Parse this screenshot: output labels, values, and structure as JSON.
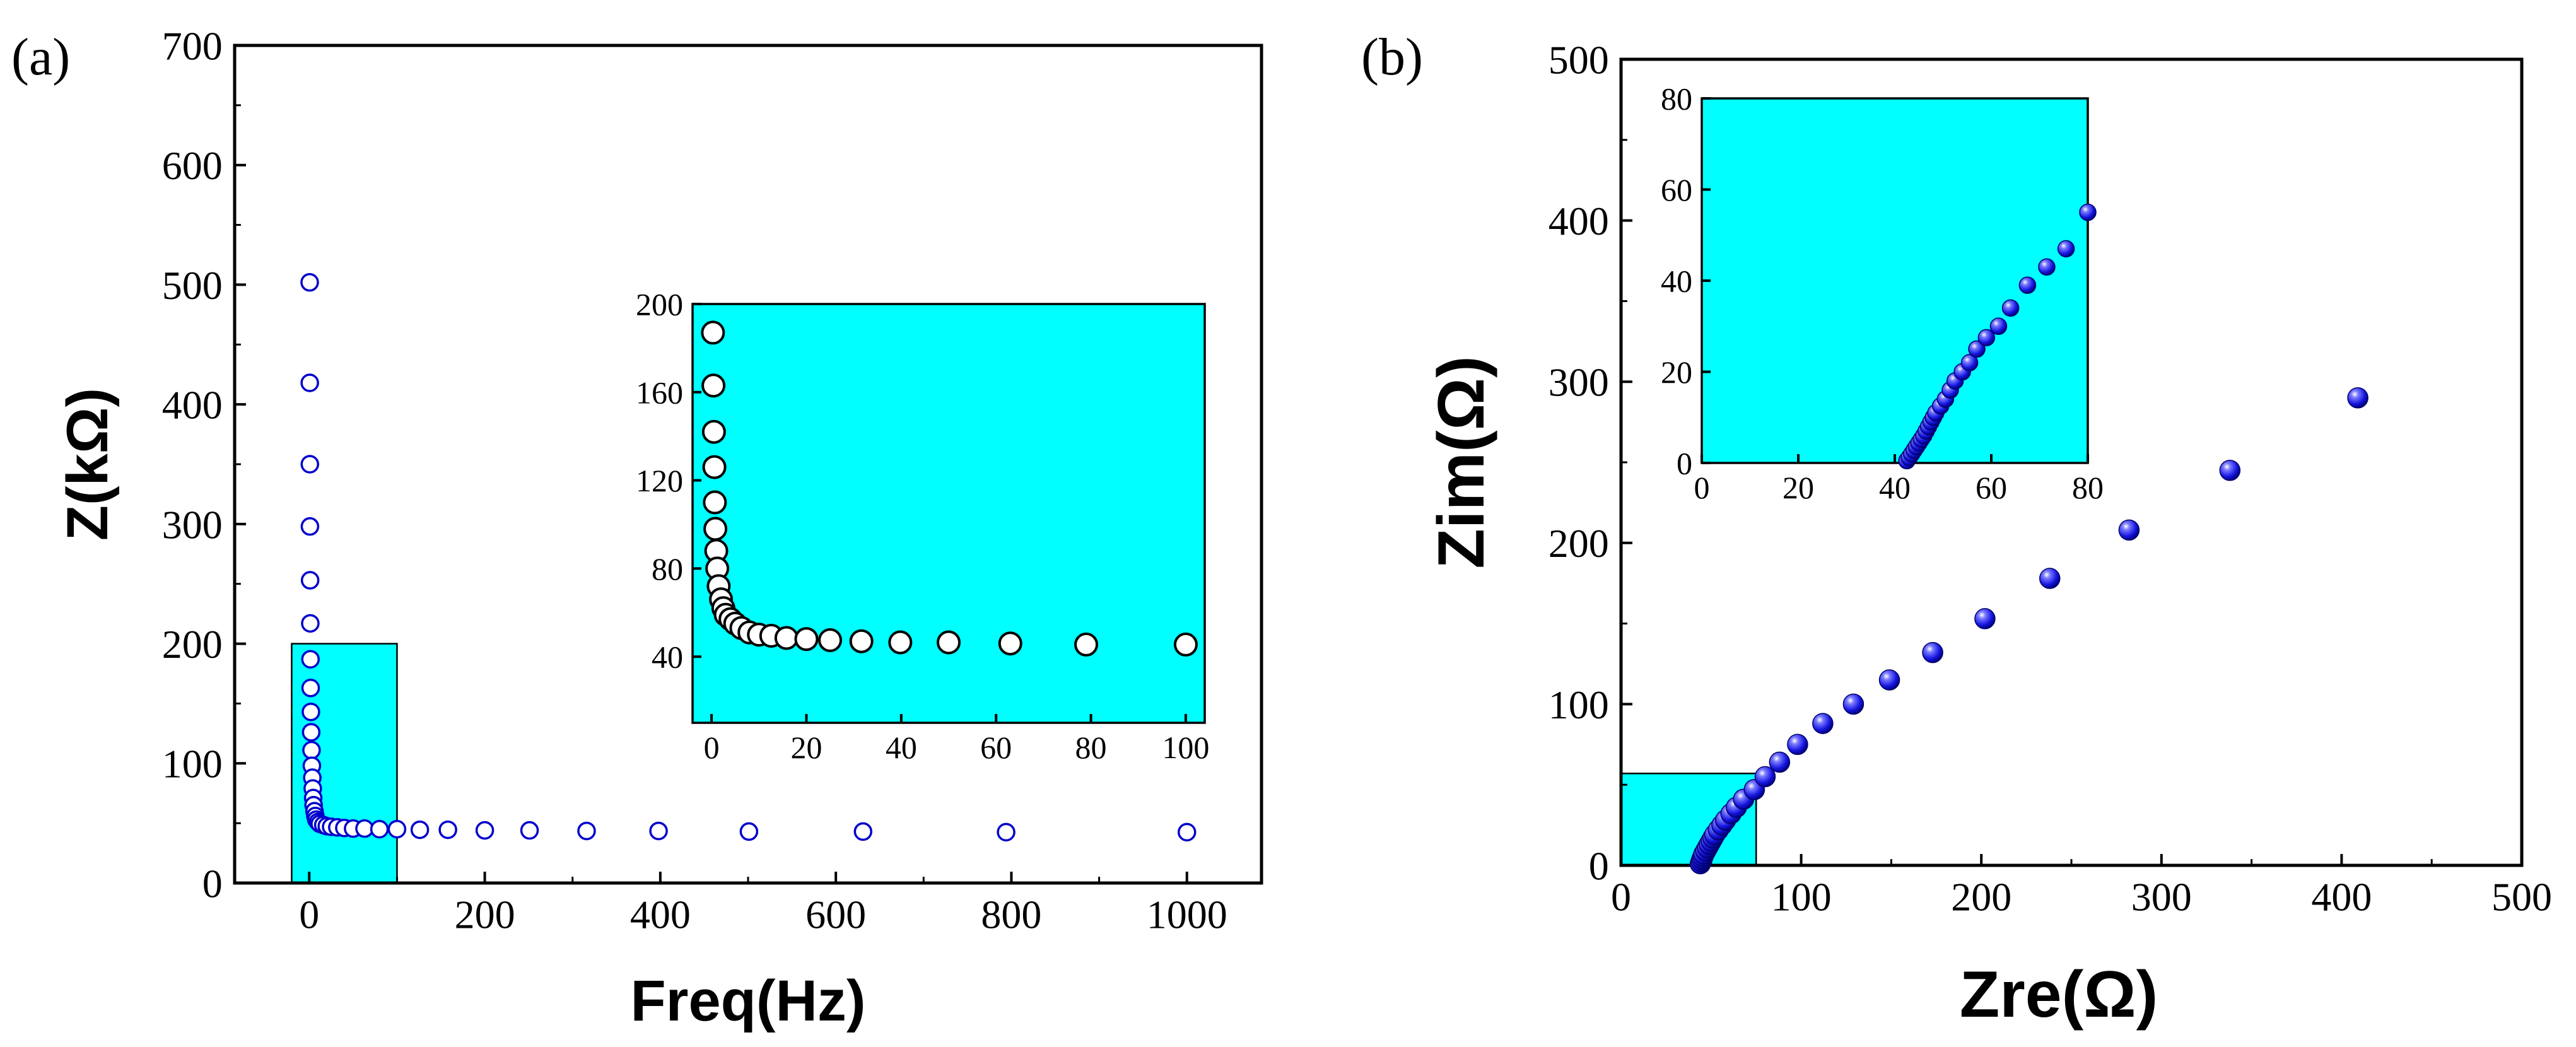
{
  "figure": {
    "label_a": "(a)",
    "label_b": "(b)"
  },
  "chart_data": [
    {
      "id": "a_main",
      "type": "scatter",
      "panel": "(a)",
      "xlabel": "Freq(Hz)",
      "ylabel": "Z(kΩ)",
      "xlim": [
        -85,
        1085
      ],
      "ylim": [
        0,
        700
      ],
      "xticks": [
        0,
        200,
        400,
        600,
        800,
        1000
      ],
      "yticks": [
        0,
        100,
        200,
        300,
        400,
        500,
        600,
        700
      ],
      "marker": "open-circle",
      "color": "#0000cc",
      "zoom_region": {
        "x": [
          -20,
          100
        ],
        "y": [
          0,
          200
        ],
        "fill": "#00ffff"
      },
      "x": [
        0.5,
        0.6,
        0.7,
        0.8,
        1,
        1.2,
        1.4,
        1.6,
        1.9,
        2.2,
        2.6,
        3,
        3.5,
        4,
        4.5,
        5,
        6,
        7,
        8,
        10,
        12,
        16,
        20,
        25,
        32,
        40,
        50,
        63,
        80,
        100,
        126,
        158,
        200,
        251,
        316,
        398,
        501,
        631,
        794,
        1000
      ],
      "y": [
        502,
        418,
        350,
        298,
        253,
        217,
        187,
        163,
        143,
        126,
        111,
        98,
        88,
        79,
        71,
        65,
        60,
        56,
        53,
        51,
        49.5,
        48.5,
        47.5,
        47,
        46.5,
        46,
        45.5,
        45.5,
        45,
        45,
        44.5,
        44.5,
        44,
        44,
        43.5,
        43.5,
        43,
        43,
        42.5,
        42.5
      ]
    },
    {
      "id": "a_inset",
      "type": "scatter",
      "panel": "(a) inset",
      "xlim": [
        -4,
        104
      ],
      "ylim": [
        10,
        200
      ],
      "xticks": [
        0,
        20,
        40,
        60,
        80,
        100
      ],
      "yticks": [
        40,
        80,
        120,
        160,
        200
      ],
      "marker": "open-circle",
      "background": "#00ffff",
      "x": [
        0.3,
        0.4,
        0.5,
        0.6,
        0.7,
        0.8,
        1,
        1.2,
        1.5,
        2,
        2.5,
        3,
        4,
        5,
        6.3,
        8,
        10,
        12.6,
        15.8,
        20,
        25,
        31.6,
        39.8,
        50,
        63,
        79,
        100
      ],
      "y": [
        187,
        163,
        142,
        126,
        110,
        98,
        88,
        80,
        72,
        66,
        62,
        59,
        57,
        55,
        53,
        51,
        50,
        49.5,
        48.5,
        48,
        47.5,
        47,
        46.5,
        46.5,
        46,
        45.5,
        45.5
      ]
    },
    {
      "id": "b_main",
      "type": "scatter",
      "panel": "(b)",
      "xlabel": "Zre(Ω)",
      "ylabel": "Zim(Ω)",
      "xlim": [
        0,
        500
      ],
      "ylim": [
        0,
        500
      ],
      "xticks": [
        0,
        100,
        200,
        300,
        400,
        500
      ],
      "yticks": [
        0,
        100,
        200,
        300,
        400,
        500
      ],
      "marker": "filled-sphere",
      "color": "#1111ee",
      "zoom_region": {
        "x": [
          0,
          75
        ],
        "y": [
          0,
          57
        ],
        "fill": "#00ffff"
      },
      "x": [
        44,
        44.5,
        45,
        45.5,
        46,
        47,
        48,
        49,
        50,
        51,
        52,
        54,
        56,
        58,
        61,
        64,
        68,
        74,
        80,
        88,
        98,
        112,
        129,
        149,
        173,
        202,
        238,
        282,
        338,
        409
      ],
      "y": [
        1,
        2.5,
        4,
        5.5,
        7,
        9,
        11,
        13,
        15,
        17,
        19,
        22,
        25,
        28,
        32,
        36,
        41,
        47,
        55,
        64,
        75,
        88,
        100,
        115,
        132,
        153,
        178,
        208,
        245,
        290
      ]
    },
    {
      "id": "b_inset",
      "type": "scatter",
      "panel": "(b) inset",
      "xlim": [
        0,
        80
      ],
      "ylim": [
        0,
        80
      ],
      "xticks": [
        0,
        20,
        40,
        60,
        80
      ],
      "yticks": [
        0,
        20,
        40,
        60,
        80
      ],
      "marker": "filled-sphere",
      "background": "#00ffff",
      "x": [
        42.5,
        43,
        43.5,
        44,
        44.5,
        45,
        45.5,
        46,
        46.5,
        47,
        47.5,
        48,
        48.5,
        49.5,
        50.5,
        51.5,
        52.5,
        54,
        55.5,
        57,
        59,
        61.5,
        64,
        67.5,
        71.5,
        75.5,
        80
      ],
      "y": [
        0.5,
        1.2,
        2,
        2.8,
        3.6,
        4.4,
        5.2,
        6,
        7,
        8,
        9,
        10,
        11,
        12.5,
        14,
        16,
        18,
        20,
        22,
        25,
        27.5,
        30,
        34,
        39,
        43,
        47,
        55
      ]
    }
  ]
}
